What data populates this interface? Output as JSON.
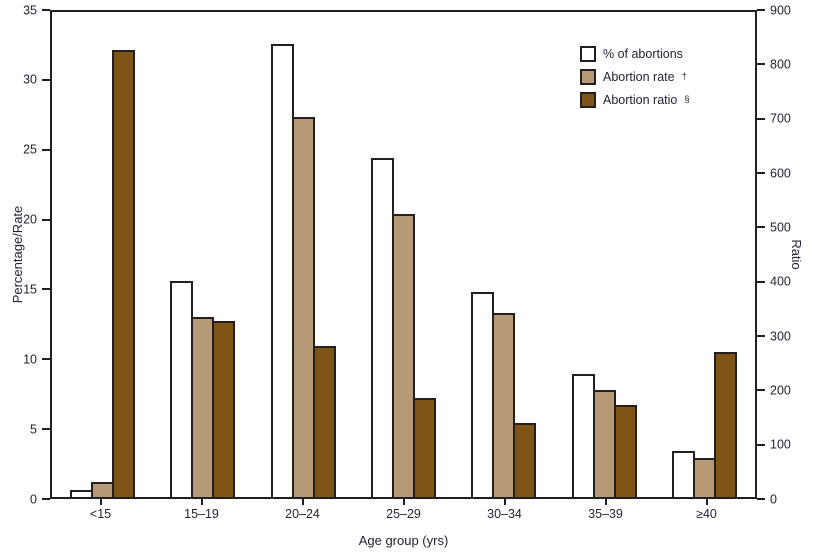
{
  "chart_data": {
    "type": "bar",
    "title": "",
    "xlabel": "Age group (yrs)",
    "categories": [
      "<15",
      "15–19",
      "20–24",
      "25–29",
      "30–34",
      "35–39",
      "≥40"
    ],
    "series": [
      {
        "name": "% of abortions",
        "axis": "left",
        "color": "#ffffff",
        "values": [
          0.5,
          15.6,
          32.7,
          24.5,
          14.8,
          8.9,
          3.3
        ]
      },
      {
        "name": "Abortion rate",
        "suffix": "†",
        "axis": "left",
        "color": "#b69a75",
        "values": [
          1.1,
          13.0,
          27.4,
          20.4,
          13.3,
          7.7,
          2.8
        ]
      },
      {
        "name": "Abortion ratio",
        "suffix": "§",
        "axis": "right",
        "color": "#7e5417",
        "values": [
          830,
          326,
          280,
          183,
          137,
          171,
          270
        ]
      }
    ],
    "left_axis": {
      "label": "Percentage/Rate",
      "min": 0,
      "max": 35,
      "ticks": [
        0,
        5,
        10,
        15,
        20,
        25,
        30,
        35
      ]
    },
    "right_axis": {
      "label": "Ratio",
      "min": 0,
      "max": 900,
      "ticks": [
        0,
        100,
        200,
        300,
        400,
        500,
        600,
        700,
        800,
        900
      ]
    },
    "legend": [
      {
        "label": "% of abortions",
        "sup": ""
      },
      {
        "label": "Abortion rate",
        "sup": "†"
      },
      {
        "label": "Abortion ratio",
        "sup": "§"
      }
    ],
    "legend_position": "top-right-inside",
    "grid": false
  },
  "colors": {
    "frame": "#231f20",
    "text": "#232334",
    "background": "#ffffff"
  }
}
